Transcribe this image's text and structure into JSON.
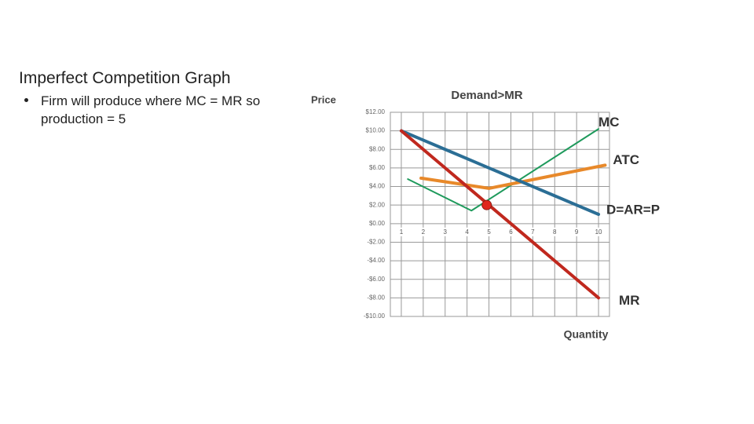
{
  "slide": {
    "title": "Imperfect Competition Graph",
    "bullet": "Firm will produce where MC = MR so production = 5"
  },
  "chart_data": {
    "type": "line",
    "title": "Demand>MR",
    "y_label": "Price",
    "x_label": "Quantity",
    "xlim": [
      0.5,
      10.5
    ],
    "xticks": [
      1,
      2,
      3,
      4,
      5,
      6,
      7,
      8,
      9,
      10
    ],
    "ylim": [
      -10,
      12
    ],
    "yticks": [
      {
        "value": 12,
        "label": "$12.00"
      },
      {
        "value": 10,
        "label": "$10.00"
      },
      {
        "value": 8,
        "label": "$8.00"
      },
      {
        "value": 6,
        "label": "$6.00"
      },
      {
        "value": 4,
        "label": "$4.00"
      },
      {
        "value": 2,
        "label": "$2.00"
      },
      {
        "value": 0,
        "label": "$0.00"
      },
      {
        "value": -2,
        "label": "-$2.00"
      },
      {
        "value": -4,
        "label": "-$4.00"
      },
      {
        "value": -6,
        "label": "-$6.00"
      },
      {
        "value": -8,
        "label": "-$8.00"
      },
      {
        "value": -10,
        "label": "-$10.00"
      }
    ],
    "grid": true,
    "series": [
      {
        "name": "MC",
        "color": "#1f9a5c",
        "width": 2,
        "x": [
          1.3,
          4.2,
          10
        ],
        "values": [
          4.8,
          1.4,
          10.2
        ]
      },
      {
        "name": "ATC",
        "color": "#e8892a",
        "width": 4,
        "x": [
          1.9,
          5,
          10.3
        ],
        "values": [
          4.9,
          3.8,
          6.3
        ]
      },
      {
        "name": "D=AR=P",
        "color": "#2b6e95",
        "width": 4,
        "x": [
          1,
          2,
          3,
          4,
          5,
          6,
          7,
          8,
          9,
          10
        ],
        "values": [
          10,
          9,
          8,
          7,
          6,
          5,
          4,
          3,
          2,
          1
        ]
      },
      {
        "name": "MR",
        "color": "#c0281e",
        "width": 4,
        "x": [
          1,
          2,
          3,
          4,
          5,
          6,
          7,
          8,
          9,
          10
        ],
        "values": [
          10,
          8,
          6,
          4,
          2,
          0,
          -2,
          -4,
          -6,
          -8
        ]
      }
    ],
    "markers": [
      {
        "x": 4.9,
        "y": 2,
        "color": "#e0261c"
      }
    ]
  }
}
